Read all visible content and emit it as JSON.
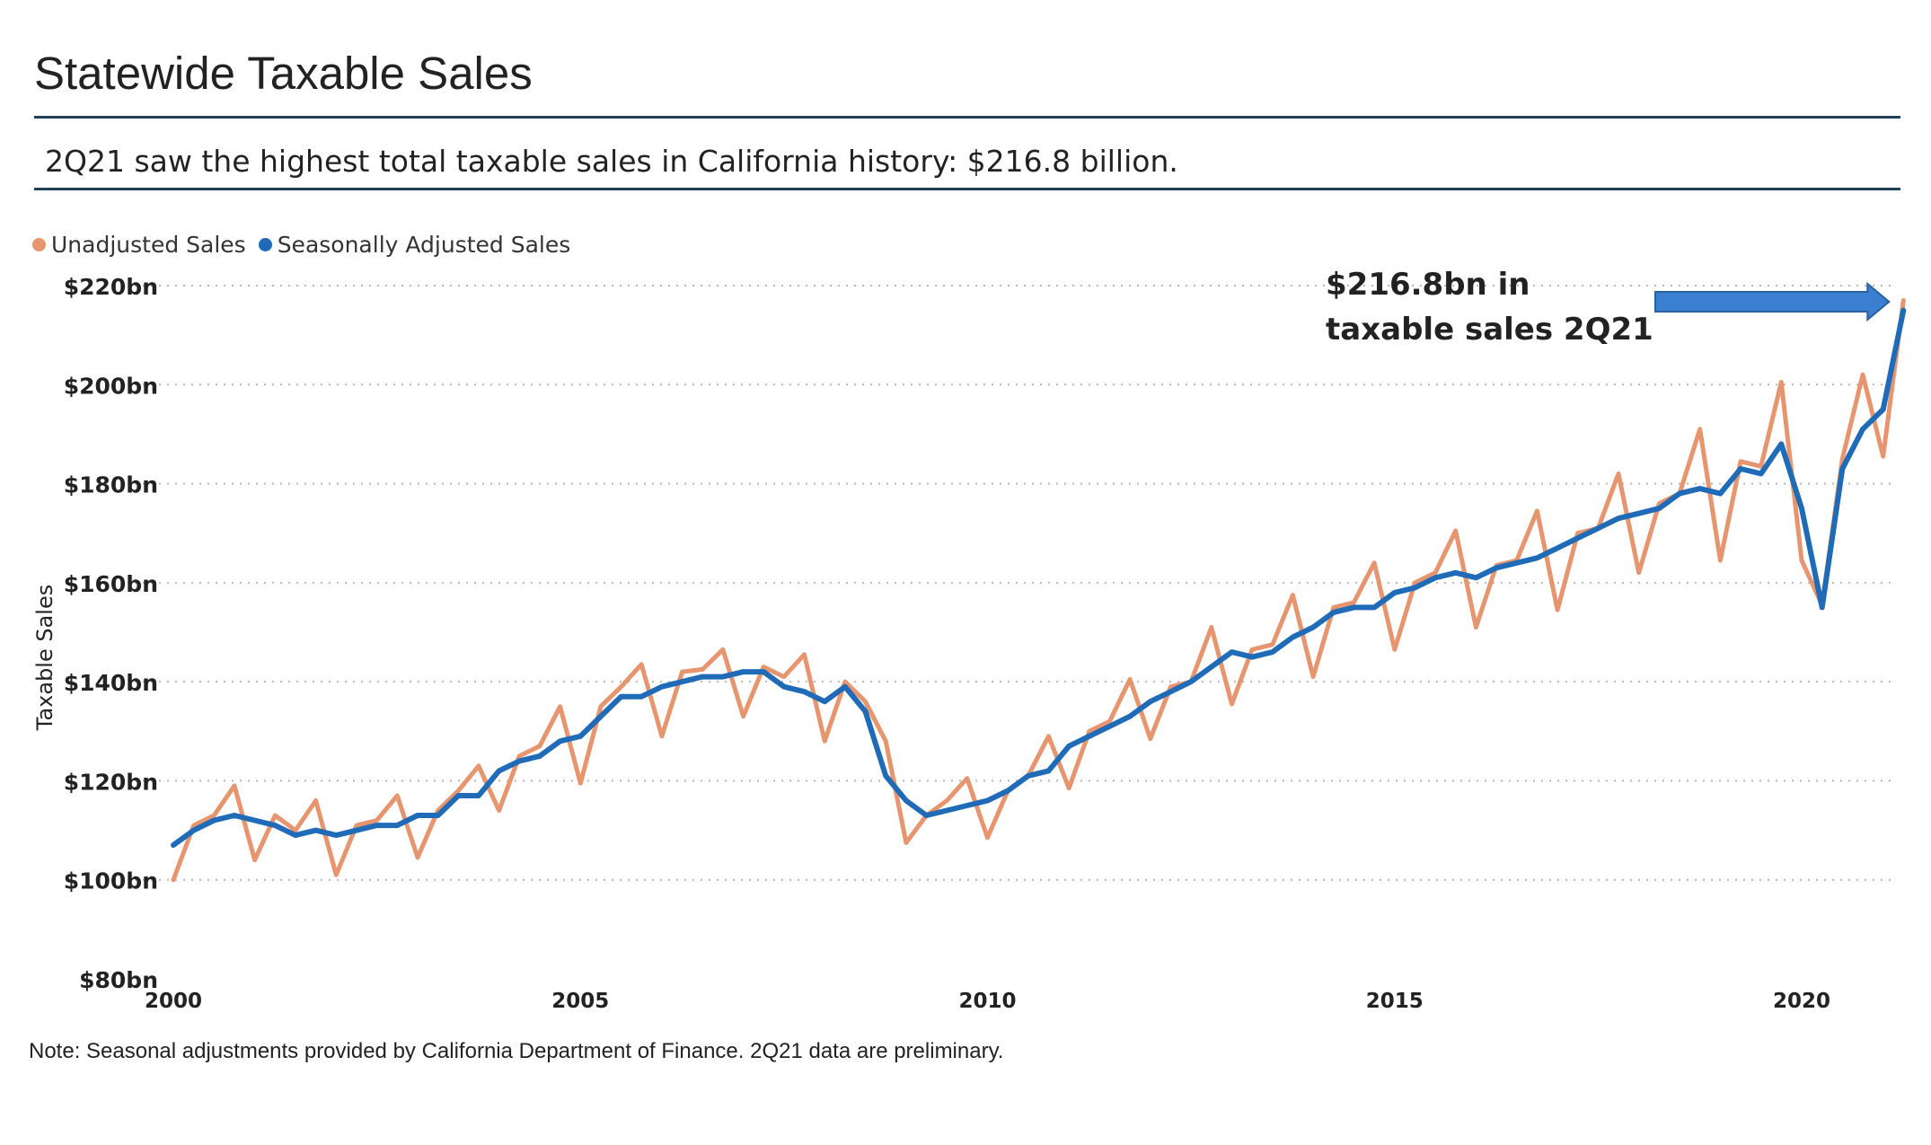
{
  "title": "Statewide Taxable Sales",
  "subtitle": "2Q21 saw the highest total taxable sales in California history: $216.8 billion.",
  "note": "Note: Seasonal adjustments provided by California Department of Finance. 2Q21 data are preliminary.",
  "colors": {
    "unadjusted": "#e6956e",
    "adjusted": "#1f6bb8",
    "rule": "#1f3f5a",
    "arrow": "#3a7fd0"
  },
  "chart_data": {
    "type": "line",
    "ylabel": "Taxable Sales",
    "xlabel": "",
    "ylim": [
      80,
      220
    ],
    "xlim": [
      2000,
      2021.25
    ],
    "yticks": [
      {
        "v": 80,
        "label": "$80bn"
      },
      {
        "v": 100,
        "label": "$100bn"
      },
      {
        "v": 120,
        "label": "$120bn"
      },
      {
        "v": 140,
        "label": "$140bn"
      },
      {
        "v": 160,
        "label": "$160bn"
      },
      {
        "v": 180,
        "label": "$180bn"
      },
      {
        "v": 200,
        "label": "$200bn"
      },
      {
        "v": 220,
        "label": "$220bn"
      }
    ],
    "xticks": [
      {
        "v": 2000,
        "label": "2000"
      },
      {
        "v": 2005,
        "label": "2005"
      },
      {
        "v": 2010,
        "label": "2010"
      },
      {
        "v": 2015,
        "label": "2015"
      },
      {
        "v": 2020,
        "label": "2020"
      }
    ],
    "grid": "horizontal-dotted",
    "legend_position": "top-left",
    "annotation": {
      "lines": [
        "$216.8bn in",
        "taxable sales 2Q21"
      ],
      "points_to": [
        2021.25,
        216.8
      ]
    },
    "x": [
      2000,
      2000.25,
      2000.5,
      2000.75,
      2001,
      2001.25,
      2001.5,
      2001.75,
      2002,
      2002.25,
      2002.5,
      2002.75,
      2003,
      2003.25,
      2003.5,
      2003.75,
      2004,
      2004.25,
      2004.5,
      2004.75,
      2005,
      2005.25,
      2005.5,
      2005.75,
      2006,
      2006.25,
      2006.5,
      2006.75,
      2007,
      2007.25,
      2007.5,
      2007.75,
      2008,
      2008.25,
      2008.5,
      2008.75,
      2009,
      2009.25,
      2009.5,
      2009.75,
      2010,
      2010.25,
      2010.5,
      2010.75,
      2011,
      2011.25,
      2011.5,
      2011.75,
      2012,
      2012.25,
      2012.5,
      2012.75,
      2013,
      2013.25,
      2013.5,
      2013.75,
      2014,
      2014.25,
      2014.5,
      2014.75,
      2015,
      2015.25,
      2015.5,
      2015.75,
      2016,
      2016.25,
      2016.5,
      2016.75,
      2017,
      2017.25,
      2017.5,
      2017.75,
      2018,
      2018.25,
      2018.5,
      2018.75,
      2019,
      2019.25,
      2019.5,
      2019.75,
      2020,
      2020.25,
      2020.5,
      2020.75,
      2021,
      2021.25
    ],
    "series": [
      {
        "name": "Unadjusted Sales",
        "color": "#e6956e",
        "values": [
          100,
          111,
          113,
          119,
          104,
          113,
          110,
          116,
          101,
          111,
          112,
          117,
          104.5,
          114,
          118,
          123,
          114,
          125,
          127,
          135,
          119.5,
          135,
          139,
          143.5,
          129,
          142,
          142.5,
          146.5,
          133,
          143,
          141,
          145.5,
          128,
          140,
          136,
          128,
          107.5,
          113,
          116,
          120.5,
          108.5,
          118,
          121,
          129,
          118.5,
          130,
          132,
          140.5,
          128.5,
          139,
          140,
          151,
          135.5,
          146.5,
          147.5,
          157.5,
          141,
          155,
          156,
          164,
          146.5,
          160,
          162,
          170.5,
          151,
          163.5,
          164.5,
          174.5,
          154.5,
          170,
          171,
          182,
          162,
          176,
          178,
          191,
          164.5,
          184.5,
          183.5,
          200.5,
          164.5,
          155.5,
          185,
          202,
          185.5,
          217
        ]
      },
      {
        "name": "Seasonally Adjusted Sales",
        "color": "#1f6bb8",
        "values": [
          107,
          110,
          112,
          113,
          112,
          111,
          109,
          110,
          109,
          110,
          111,
          111,
          113,
          113,
          117,
          117,
          122,
          124,
          125,
          128,
          129,
          133,
          137,
          137,
          139,
          140,
          141,
          141,
          142,
          142,
          139,
          138,
          136,
          139,
          134,
          121,
          116,
          113,
          114,
          115,
          116,
          118,
          121,
          122,
          127,
          129,
          131,
          133,
          136,
          138,
          140,
          143,
          146,
          145,
          146,
          149,
          151,
          154,
          155,
          155,
          158,
          159,
          161,
          162,
          161,
          163,
          164,
          165,
          167,
          169,
          171,
          173,
          174,
          175,
          178,
          179,
          178,
          183,
          182,
          188,
          175,
          155,
          183,
          191,
          195,
          215
        ]
      }
    ]
  }
}
